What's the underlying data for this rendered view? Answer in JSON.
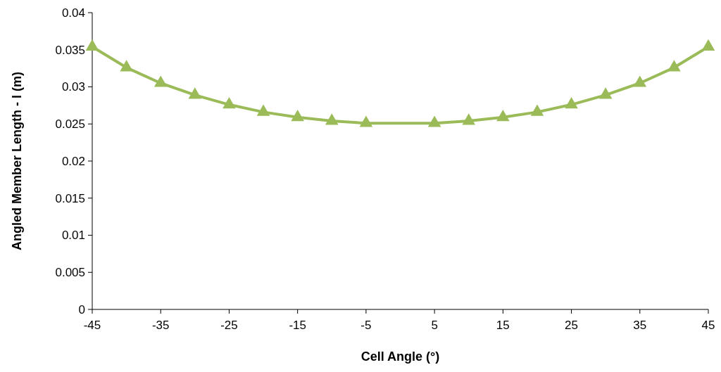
{
  "chart_data": {
    "type": "line",
    "xlabel": "Cell Angle (°)",
    "ylabel": "Angled Member Length - l (m)",
    "x": [
      -45,
      -40,
      -35,
      -30,
      -25,
      -20,
      -15,
      -10,
      -5,
      5,
      10,
      15,
      20,
      25,
      30,
      35,
      40,
      45
    ],
    "series": [
      {
        "color": "#9bbb59",
        "values": [
          0.0354,
          0.0326,
          0.0305,
          0.0289,
          0.0276,
          0.0266,
          0.0259,
          0.0254,
          0.0251,
          0.0251,
          0.0254,
          0.0259,
          0.0266,
          0.0276,
          0.0289,
          0.0305,
          0.0326,
          0.0354
        ]
      }
    ],
    "xlim": [
      -45,
      45
    ],
    "xticks": [
      -45,
      -35,
      -25,
      -15,
      -5,
      5,
      15,
      25,
      35,
      45
    ],
    "ylim": [
      0,
      0.04
    ],
    "yticks": [
      0,
      0.005,
      0.01,
      0.015,
      0.02,
      0.025,
      0.03,
      0.035,
      0.04
    ],
    "grid": false,
    "marker": "triangle",
    "line_style": "solid"
  }
}
